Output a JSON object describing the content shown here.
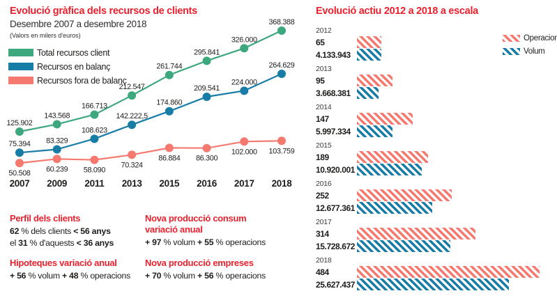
{
  "colors": {
    "accent_red": "#e9212e",
    "green": "#3da87d",
    "blue": "#177ca6",
    "salmon": "#f5796e",
    "text": "#1d1d1b"
  },
  "left_chart": {
    "title": "Evolució gràfica dels recursos de clients",
    "subtitle": "Desembre 2007 a desembre 2018",
    "note": "(Valors en milers d'euros)"
  },
  "right_chart": {
    "title": "Evolució actiu 2012 a 2018 a escala"
  },
  "chart_data": [
    {
      "type": "line",
      "title": "Evolució gràfica dels recursos de clients",
      "subtitle": "Desembre 2007 a desembre 2018",
      "units": "milers d'euros",
      "categories": [
        "2007",
        "2009",
        "2011",
        "2013",
        "2015",
        "2016",
        "2017",
        "2018"
      ],
      "ylim": [
        40000,
        380000
      ],
      "grid": false,
      "legend_position": "top-left",
      "series": [
        {
          "name": "Total recursos client",
          "color": "#3da87d",
          "values": [
            125902,
            143568,
            166713,
            212547,
            261744,
            295841,
            326000,
            368388
          ],
          "labels": [
            "125.902",
            "143.568",
            "166.713",
            "212.547",
            "261.744",
            "295.841",
            "326.000",
            "368.388"
          ],
          "label_position": "above"
        },
        {
          "name": "Recursos en balanç",
          "color": "#177ca6",
          "values": [
            75394,
            83329,
            108623,
            142222.5,
            174860,
            209541,
            224000,
            264629
          ],
          "labels": [
            "75.394",
            "83.329",
            "108.623",
            "142.222,5",
            "174.860",
            "209.541",
            "224.000",
            "264.629"
          ],
          "label_position": "above"
        },
        {
          "name": "Recursos fora de balanç",
          "color": "#f5796e",
          "values": [
            50508,
            60239,
            58090,
            70324,
            86884,
            86300,
            102000,
            103759
          ],
          "labels": [
            "50.508",
            "60.239",
            "58.090",
            "70.324",
            "86.884",
            "86.300",
            "102.000",
            "103.759"
          ],
          "label_position": "below"
        }
      ]
    },
    {
      "type": "bar",
      "orientation": "horizontal",
      "title": "Evolució actiu 2012 a 2018 a escala",
      "categories": [
        "2012",
        "2013",
        "2014",
        "2015",
        "2016",
        "2017",
        "2018"
      ],
      "legend_position": "top-right",
      "hatch": "diagonal",
      "series": [
        {
          "name": "Operacions",
          "color": "#f5796e",
          "values": [
            65,
            95,
            147,
            189,
            252,
            314,
            484
          ],
          "labels": [
            "65",
            "95",
            "147",
            "189",
            "252",
            "314",
            "484"
          ]
        },
        {
          "name": "Volum",
          "color": "#177ca6",
          "values": [
            4133943,
            3668381,
            5997334,
            10920001,
            12677361,
            15728672,
            25627437
          ],
          "labels": [
            "4.133.943",
            "3.668.381",
            "5.997.334",
            "10.920.001",
            "12.677.361",
            "15.728.672",
            "25.627.437"
          ]
        }
      ]
    }
  ],
  "facts": {
    "columns": [
      [
        {
          "heading": "Perfil dels clients",
          "lines": [
            [
              {
                "text": "62",
                "bold": true
              },
              {
                "text": " % dels clients ",
                "bold": false
              },
              {
                "text": "< 56 anys",
                "bold": true
              }
            ],
            [
              {
                "text": "el ",
                "bold": false
              },
              {
                "text": "31",
                "bold": true
              },
              {
                "text": " % d'aquests ",
                "bold": false
              },
              {
                "text": "< 36 anys",
                "bold": true
              }
            ]
          ]
        },
        {
          "heading": "Hipoteques variació anual",
          "lines": [
            [
              {
                "text": "+ 56",
                "bold": true
              },
              {
                "text": " % volum ",
                "bold": false
              },
              {
                "text": "+ 48",
                "bold": true
              },
              {
                "text": " % operacions",
                "bold": false
              }
            ]
          ]
        }
      ],
      [
        {
          "heading": "Nova producció consum variació anual",
          "lines": [
            [
              {
                "text": "+ 97",
                "bold": true
              },
              {
                "text": " % volum ",
                "bold": false
              },
              {
                "text": "+ 55",
                "bold": true
              },
              {
                "text": " % operacions",
                "bold": false
              }
            ]
          ]
        },
        {
          "heading": "Nova producció empreses",
          "lines": [
            [
              {
                "text": "+ 70",
                "bold": true
              },
              {
                "text": " % volum ",
                "bold": false
              },
              {
                "text": "+ 56",
                "bold": true
              },
              {
                "text": " % operacions",
                "bold": false
              }
            ]
          ]
        }
      ]
    ]
  }
}
